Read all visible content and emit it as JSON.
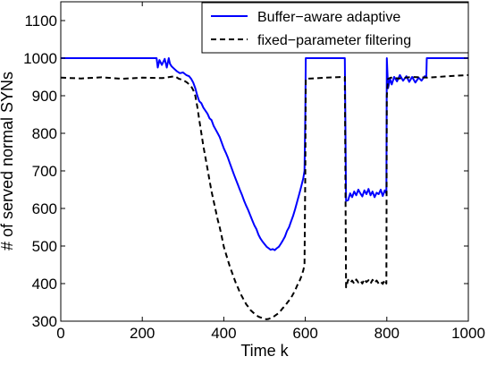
{
  "chart_data": {
    "type": "line",
    "xlabel": "Time k",
    "ylabel": "# of served normal SYNs",
    "xlim": [
      0,
      1000
    ],
    "ylim": [
      300,
      1150
    ],
    "xticks": [
      0,
      200,
      400,
      600,
      800,
      1000
    ],
    "yticks": [
      300,
      400,
      500,
      600,
      700,
      800,
      900,
      1000,
      1100
    ],
    "grid": false,
    "legend_position": "top-right",
    "series": [
      {
        "name": "Buffer−aware adaptive",
        "color": "#0000ff",
        "style": "solid",
        "points": [
          [
            0,
            1000
          ],
          [
            200,
            1000
          ],
          [
            235,
            1000
          ],
          [
            238,
            975
          ],
          [
            242,
            995
          ],
          [
            248,
            982
          ],
          [
            255,
            998
          ],
          [
            260,
            975
          ],
          [
            265,
            1000
          ],
          [
            268,
            985
          ],
          [
            272,
            978
          ],
          [
            278,
            972
          ],
          [
            285,
            965
          ],
          [
            292,
            960
          ],
          [
            300,
            962
          ],
          [
            308,
            955
          ],
          [
            315,
            952
          ],
          [
            320,
            945
          ],
          [
            325,
            935
          ],
          [
            330,
            920
          ],
          [
            335,
            900
          ],
          [
            340,
            885
          ],
          [
            345,
            880
          ],
          [
            350,
            868
          ],
          [
            355,
            860
          ],
          [
            360,
            852
          ],
          [
            365,
            840
          ],
          [
            370,
            835
          ],
          [
            375,
            820
          ],
          [
            380,
            810
          ],
          [
            385,
            800
          ],
          [
            390,
            790
          ],
          [
            395,
            775
          ],
          [
            400,
            760
          ],
          [
            405,
            748
          ],
          [
            410,
            735
          ],
          [
            415,
            720
          ],
          [
            420,
            705
          ],
          [
            425,
            690
          ],
          [
            430,
            676
          ],
          [
            435,
            662
          ],
          [
            440,
            648
          ],
          [
            445,
            635
          ],
          [
            450,
            620
          ],
          [
            455,
            607
          ],
          [
            460,
            595
          ],
          [
            465,
            582
          ],
          [
            470,
            568
          ],
          [
            475,
            555
          ],
          [
            480,
            545
          ],
          [
            485,
            530
          ],
          [
            490,
            520
          ],
          [
            495,
            512
          ],
          [
            500,
            505
          ],
          [
            505,
            498
          ],
          [
            510,
            494
          ],
          [
            515,
            490
          ],
          [
            520,
            492
          ],
          [
            525,
            489
          ],
          [
            530,
            494
          ],
          [
            535,
            498
          ],
          [
            540,
            506
          ],
          [
            545,
            515
          ],
          [
            550,
            525
          ],
          [
            555,
            540
          ],
          [
            560,
            550
          ],
          [
            565,
            565
          ],
          [
            570,
            580
          ],
          [
            575,
            598
          ],
          [
            580,
            618
          ],
          [
            585,
            638
          ],
          [
            590,
            658
          ],
          [
            595,
            680
          ],
          [
            598,
            700
          ],
          [
            600,
            850
          ],
          [
            601,
            1000
          ],
          [
            697,
            1000
          ],
          [
            700,
            620
          ],
          [
            705,
            622
          ],
          [
            710,
            640
          ],
          [
            715,
            630
          ],
          [
            720,
            645
          ],
          [
            725,
            635
          ],
          [
            730,
            650
          ],
          [
            735,
            640
          ],
          [
            740,
            632
          ],
          [
            745,
            648
          ],
          [
            750,
            638
          ],
          [
            755,
            652
          ],
          [
            760,
            635
          ],
          [
            765,
            645
          ],
          [
            770,
            630
          ],
          [
            775,
            642
          ],
          [
            780,
            638
          ],
          [
            785,
            650
          ],
          [
            790,
            633
          ],
          [
            795,
            648
          ],
          [
            799,
            640
          ],
          [
            800,
            1000
          ],
          [
            803,
            920
          ],
          [
            808,
            945
          ],
          [
            812,
            930
          ],
          [
            818,
            950
          ],
          [
            825,
            938
          ],
          [
            832,
            955
          ],
          [
            840,
            940
          ],
          [
            848,
            952
          ],
          [
            855,
            937
          ],
          [
            862,
            950
          ],
          [
            870,
            935
          ],
          [
            878,
            948
          ],
          [
            885,
            940
          ],
          [
            893,
            952
          ],
          [
            897,
            950
          ],
          [
            898,
            1000
          ],
          [
            1000,
            1000
          ]
        ]
      },
      {
        "name": "fixed−parameter filtering",
        "color": "#000000",
        "style": "dashed",
        "points": [
          [
            0,
            948
          ],
          [
            50,
            946
          ],
          [
            100,
            949
          ],
          [
            150,
            945
          ],
          [
            200,
            948
          ],
          [
            250,
            947
          ],
          [
            280,
            952
          ],
          [
            290,
            945
          ],
          [
            300,
            942
          ],
          [
            310,
            935
          ],
          [
            320,
            925
          ],
          [
            325,
            915
          ],
          [
            330,
            900
          ],
          [
            335,
            870
          ],
          [
            340,
            835
          ],
          [
            345,
            800
          ],
          [
            350,
            765
          ],
          [
            355,
            735
          ],
          [
            360,
            705
          ],
          [
            365,
            675
          ],
          [
            370,
            645
          ],
          [
            375,
            620
          ],
          [
            380,
            595
          ],
          [
            385,
            570
          ],
          [
            390,
            550
          ],
          [
            395,
            525
          ],
          [
            400,
            498
          ],
          [
            405,
            480
          ],
          [
            410,
            462
          ],
          [
            415,
            445
          ],
          [
            420,
            430
          ],
          [
            425,
            415
          ],
          [
            430,
            400
          ],
          [
            435,
            388
          ],
          [
            440,
            375
          ],
          [
            445,
            365
          ],
          [
            450,
            355
          ],
          [
            455,
            345
          ],
          [
            460,
            338
          ],
          [
            465,
            330
          ],
          [
            470,
            325
          ],
          [
            475,
            320
          ],
          [
            480,
            316
          ],
          [
            485,
            312
          ],
          [
            490,
            310
          ],
          [
            495,
            308
          ],
          [
            500,
            306
          ],
          [
            505,
            305
          ],
          [
            510,
            306
          ],
          [
            515,
            308
          ],
          [
            520,
            310
          ],
          [
            525,
            314
          ],
          [
            530,
            318
          ],
          [
            535,
            322
          ],
          [
            540,
            328
          ],
          [
            545,
            335
          ],
          [
            550,
            340
          ],
          [
            555,
            348
          ],
          [
            560,
            355
          ],
          [
            565,
            362
          ],
          [
            570,
            372
          ],
          [
            575,
            382
          ],
          [
            580,
            395
          ],
          [
            585,
            405
          ],
          [
            590,
            418
          ],
          [
            595,
            435
          ],
          [
            598,
            450
          ],
          [
            600,
            700
          ],
          [
            601,
            945
          ],
          [
            650,
            948
          ],
          [
            697,
            950
          ],
          [
            700,
            390
          ],
          [
            705,
            410
          ],
          [
            710,
            402
          ],
          [
            715,
            408
          ],
          [
            720,
            400
          ],
          [
            725,
            411
          ],
          [
            730,
            403
          ],
          [
            735,
            408
          ],
          [
            740,
            400
          ],
          [
            745,
            412
          ],
          [
            750,
            404
          ],
          [
            755,
            409
          ],
          [
            760,
            400
          ],
          [
            765,
            410
          ],
          [
            770,
            402
          ],
          [
            775,
            408
          ],
          [
            780,
            400
          ],
          [
            785,
            405
          ],
          [
            790,
            399
          ],
          [
            795,
            410
          ],
          [
            799,
            400
          ],
          [
            800,
            900
          ],
          [
            803,
            945
          ],
          [
            810,
            948
          ],
          [
            830,
            946
          ],
          [
            860,
            950
          ],
          [
            900,
            948
          ],
          [
            950,
            952
          ],
          [
            1000,
            955
          ]
        ]
      }
    ]
  }
}
